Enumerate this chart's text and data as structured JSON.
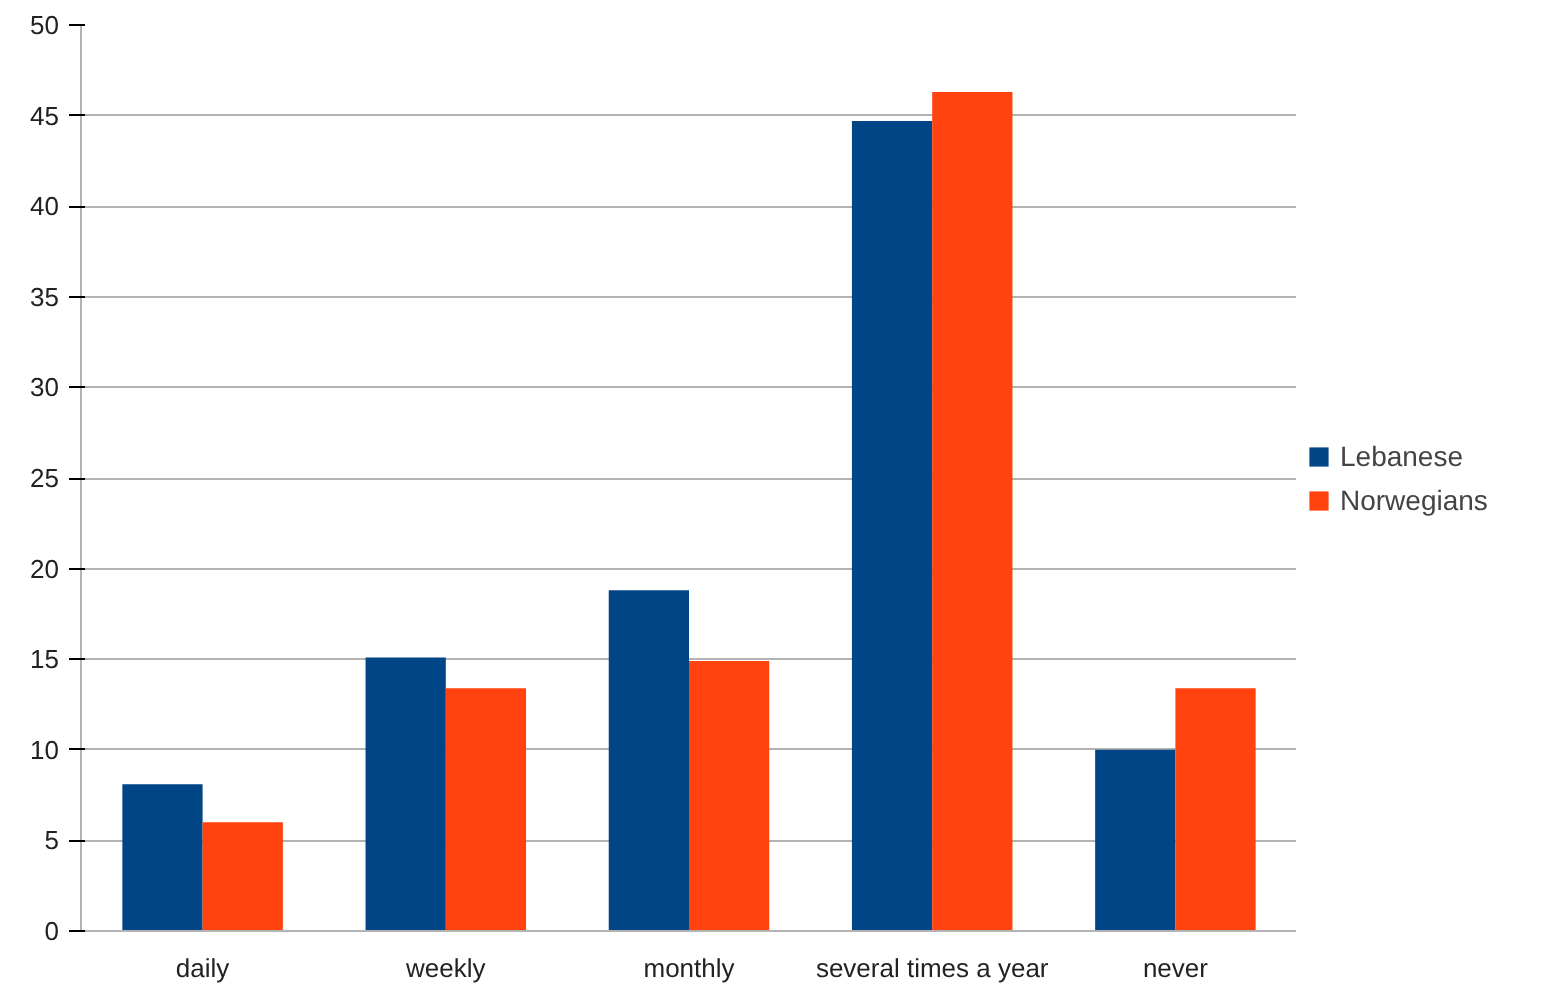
{
  "chart_data": {
    "type": "bar",
    "categories": [
      "daily",
      "weekly",
      "monthly",
      "several times a year",
      "never"
    ],
    "series": [
      {
        "name": "Lebanese",
        "color": "#004586",
        "values": [
          8.1,
          15.1,
          18.8,
          44.7,
          10.0
        ]
      },
      {
        "name": "Norwegians",
        "color": "#ff420e",
        "values": [
          6.0,
          13.4,
          14.9,
          46.3,
          13.4
        ]
      }
    ],
    "ylim": [
      0,
      50
    ],
    "yticks": [
      0,
      5,
      10,
      15,
      20,
      25,
      30,
      35,
      40,
      45,
      50
    ],
    "grid": "y",
    "legend": "right"
  }
}
